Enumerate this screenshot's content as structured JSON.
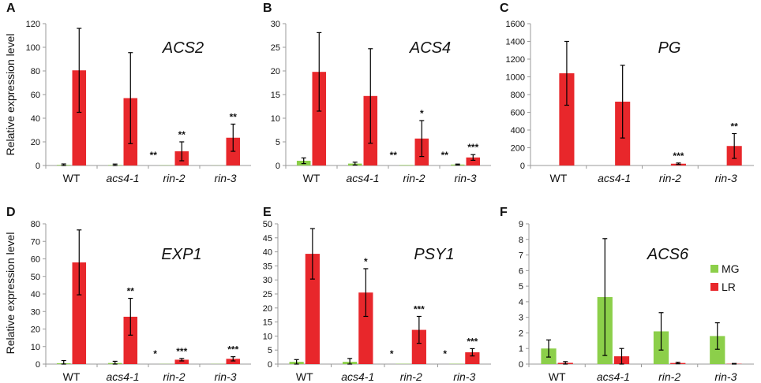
{
  "y_axis_label": "Relative expression level",
  "colors": {
    "MG": "#8ccf4a",
    "LR": "#e8272b",
    "axis": "#9a9a9a",
    "err": "#000000"
  },
  "legend": [
    {
      "name": "MG",
      "color": "#8ccf4a"
    },
    {
      "name": "LR",
      "color": "#e8272b"
    }
  ],
  "chart_data": [
    {
      "panel": "A",
      "type": "bar",
      "title": "ACS2",
      "categories": [
        "WT",
        "acs4-1",
        "rin-2",
        "rin-3"
      ],
      "ylim": [
        0,
        120
      ],
      "yticks": [
        0,
        20,
        40,
        60,
        80,
        100,
        120
      ],
      "series": [
        {
          "name": "MG",
          "values": [
            0.5,
            0.4,
            0.2,
            0.1
          ],
          "errors": [
            0.8,
            0.8,
            0,
            0
          ],
          "sig": [
            "",
            "",
            "**",
            ""
          ]
        },
        {
          "name": "LR",
          "values": [
            80.5,
            57,
            12,
            23.5
          ],
          "errors": [
            35.5,
            38.5,
            8,
            11.5
          ],
          "sig": [
            "",
            "",
            "**",
            "**"
          ]
        }
      ]
    },
    {
      "panel": "B",
      "type": "bar",
      "title": "ACS4",
      "categories": [
        "WT",
        "acs4-1",
        "rin-2",
        "rin-3"
      ],
      "ylim": [
        0,
        30
      ],
      "yticks": [
        0,
        5,
        10,
        15,
        20,
        25,
        30
      ],
      "series": [
        {
          "name": "MG",
          "values": [
            1,
            0.4,
            0.1,
            0.2
          ],
          "errors": [
            0.6,
            0.3,
            0,
            0.1
          ],
          "sig": [
            "",
            "",
            "**",
            "**"
          ]
        },
        {
          "name": "LR",
          "values": [
            19.8,
            14.7,
            5.7,
            1.7
          ],
          "errors": [
            8.3,
            10,
            3.8,
            0.6
          ],
          "sig": [
            "",
            "",
            "*",
            "***"
          ]
        }
      ]
    },
    {
      "panel": "C",
      "type": "bar",
      "title": "PG",
      "categories": [
        "WT",
        "acs4-1",
        "rin-2",
        "rin-3"
      ],
      "ylim": [
        0,
        1600
      ],
      "yticks": [
        0,
        200,
        400,
        600,
        800,
        1000,
        1200,
        1400,
        1600
      ],
      "series": [
        {
          "name": "MG",
          "values": [
            0,
            0,
            0,
            0
          ],
          "errors": [
            0,
            0,
            0,
            0
          ],
          "sig": [
            "",
            "",
            "",
            ""
          ]
        },
        {
          "name": "LR",
          "values": [
            1040,
            720,
            20,
            220
          ],
          "errors": [
            360,
            410,
            8,
            140
          ],
          "sig": [
            "",
            "",
            "***",
            "**"
          ]
        }
      ]
    },
    {
      "panel": "D",
      "type": "bar",
      "title": "EXP1",
      "categories": [
        "WT",
        "acs4-1",
        "rin-2",
        "rin-3"
      ],
      "ylim": [
        0,
        80
      ],
      "yticks": [
        0,
        10,
        20,
        30,
        40,
        50,
        60,
        70,
        80
      ],
      "series": [
        {
          "name": "MG",
          "values": [
            0.5,
            0.6,
            0.1,
            0.1
          ],
          "errors": [
            1.5,
            1,
            0,
            0
          ],
          "sig": [
            "",
            "",
            "*",
            ""
          ]
        },
        {
          "name": "LR",
          "values": [
            58,
            27,
            2.5,
            3
          ],
          "errors": [
            18.5,
            10.5,
            0.7,
            1.2
          ],
          "sig": [
            "",
            "**",
            "***",
            "***"
          ]
        }
      ]
    },
    {
      "panel": "E",
      "type": "bar",
      "title": "PSY1",
      "categories": [
        "WT",
        "acs4-1",
        "rin-2",
        "rin-3"
      ],
      "ylim": [
        0,
        50
      ],
      "yticks": [
        0,
        5,
        10,
        15,
        20,
        25,
        30,
        35,
        40,
        45,
        50
      ],
      "series": [
        {
          "name": "MG",
          "values": [
            0.8,
            0.8,
            0.1,
            0.1
          ],
          "errors": [
            0.8,
            1.2,
            0,
            0
          ],
          "sig": [
            "",
            "",
            "*",
            "*"
          ]
        },
        {
          "name": "LR",
          "values": [
            39.3,
            25.5,
            12.2,
            4.2
          ],
          "errors": [
            9,
            8.5,
            4.8,
            1.3
          ],
          "sig": [
            "",
            "*",
            "***",
            "***"
          ]
        }
      ]
    },
    {
      "panel": "F",
      "type": "bar",
      "title": "ACS6",
      "categories": [
        "WT",
        "acs4-1",
        "rin-2",
        "rin-3"
      ],
      "ylim": [
        0,
        9
      ],
      "yticks": [
        0,
        1,
        2,
        3,
        4,
        5,
        6,
        7,
        8,
        9
      ],
      "series": [
        {
          "name": "MG",
          "values": [
            1,
            4.3,
            2.1,
            1.8
          ],
          "errors": [
            0.55,
            3.75,
            1.2,
            0.85
          ],
          "sig": [
            "",
            "",
            "",
            ""
          ]
        },
        {
          "name": "LR",
          "values": [
            0.08,
            0.5,
            0.07,
            0.02
          ],
          "errors": [
            0.08,
            0.5,
            0.05,
            0.02
          ],
          "sig": [
            "",
            "",
            "",
            ""
          ]
        }
      ]
    }
  ]
}
